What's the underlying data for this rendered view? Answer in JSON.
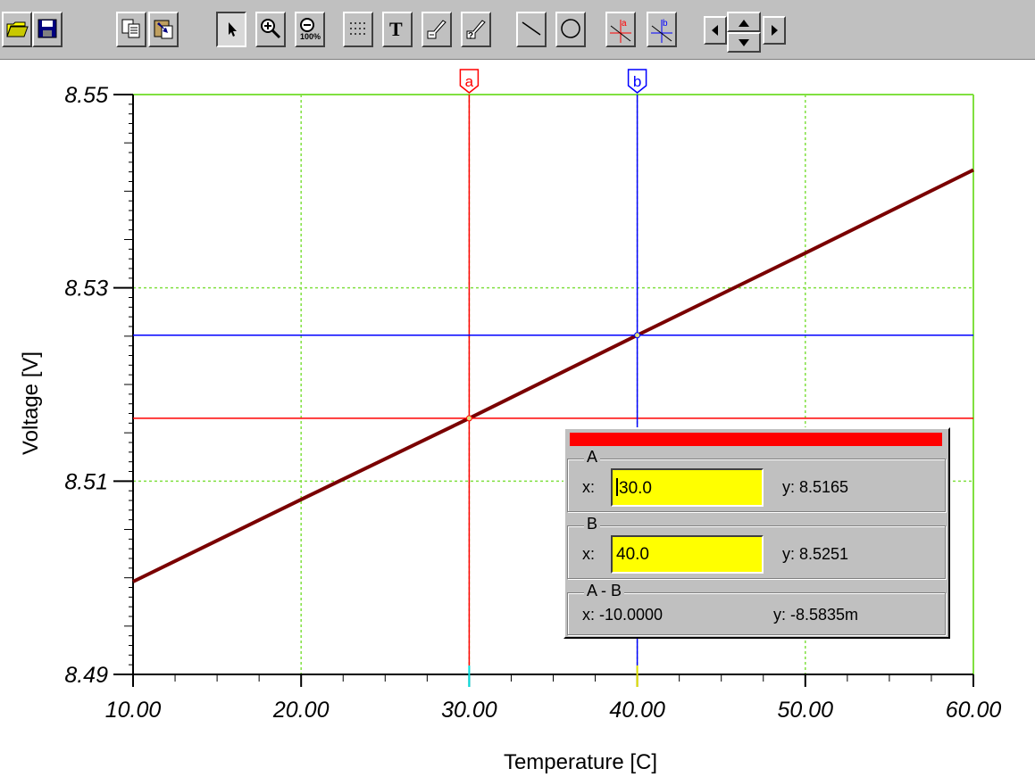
{
  "toolbar": {
    "buttons": [
      {
        "name": "open-icon"
      },
      {
        "name": "save-icon"
      },
      {
        "name": "copy-icon"
      },
      {
        "name": "paste-icon"
      },
      {
        "name": "pointer-icon"
      },
      {
        "name": "zoom-in-icon"
      },
      {
        "name": "zoom-out-100-icon"
      },
      {
        "name": "grid-icon"
      },
      {
        "name": "text-icon"
      },
      {
        "name": "annotate-icon"
      },
      {
        "name": "annotate-query-icon"
      },
      {
        "name": "line-icon"
      },
      {
        "name": "circle-icon"
      },
      {
        "name": "cursor-a-icon"
      },
      {
        "name": "cursor-b-icon"
      }
    ]
  },
  "chart_data": {
    "type": "line",
    "title": "",
    "xlabel": "Temperature [C]",
    "ylabel": "Voltage [V]",
    "xlim": [
      10,
      60
    ],
    "ylim": [
      8.49,
      8.55
    ],
    "x_ticks": [
      "10.00",
      "20.00",
      "30.00",
      "40.00",
      "50.00",
      "60.00"
    ],
    "y_ticks": [
      "8.55",
      "8.53",
      "8.51",
      "8.49"
    ],
    "grid": true,
    "series": [
      {
        "x": [
          10,
          20,
          30,
          40,
          50,
          60
        ],
        "y": [
          8.4996,
          8.5081,
          8.5165,
          8.5251,
          8.5336,
          8.5422
        ],
        "color": "#7a0000"
      }
    ],
    "cursors": [
      {
        "label": "a",
        "x": 30.0,
        "y": 8.5165,
        "color": "#ff0000"
      },
      {
        "label": "b",
        "x": 40.0,
        "y": 8.5251,
        "color": "#0000ff"
      }
    ]
  },
  "readout": {
    "a": {
      "title": "A",
      "x_label": "x:",
      "x_value": "30.0",
      "y_text": "y: 8.5165"
    },
    "b": {
      "title": "B",
      "x_label": "x:",
      "x_value": "40.0",
      "y_text": "y: 8.5251"
    },
    "diff": {
      "title": "A - B",
      "x_text": "x:  -10.0000",
      "y_text": "y: -8.5835m"
    }
  }
}
